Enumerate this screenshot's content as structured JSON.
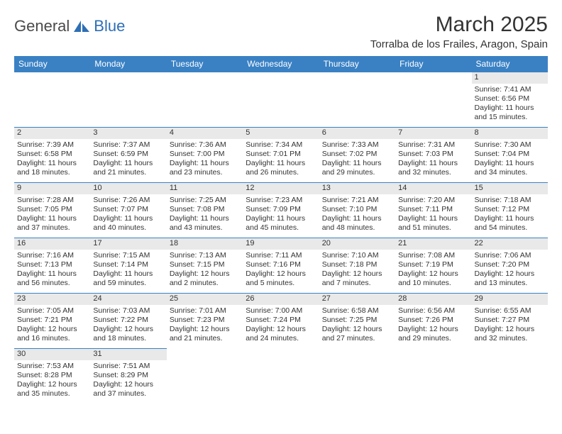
{
  "logo": {
    "part1": "General",
    "part2": "Blue"
  },
  "title": "March 2025",
  "location": "Torralba de los Frailes, Aragon, Spain",
  "colors": {
    "header_bg": "#3a81c4",
    "header_fg": "#ffffff",
    "daynum_bg": "#e9e9e9",
    "rule": "#3a81c4",
    "logo_accent": "#2e6fb5"
  },
  "weekdays": [
    "Sunday",
    "Monday",
    "Tuesday",
    "Wednesday",
    "Thursday",
    "Friday",
    "Saturday"
  ],
  "weeks": [
    [
      null,
      null,
      null,
      null,
      null,
      null,
      {
        "n": "1",
        "sunrise": "Sunrise: 7:41 AM",
        "sunset": "Sunset: 6:56 PM",
        "day1": "Daylight: 11 hours",
        "day2": "and 15 minutes."
      }
    ],
    [
      {
        "n": "2",
        "sunrise": "Sunrise: 7:39 AM",
        "sunset": "Sunset: 6:58 PM",
        "day1": "Daylight: 11 hours",
        "day2": "and 18 minutes."
      },
      {
        "n": "3",
        "sunrise": "Sunrise: 7:37 AM",
        "sunset": "Sunset: 6:59 PM",
        "day1": "Daylight: 11 hours",
        "day2": "and 21 minutes."
      },
      {
        "n": "4",
        "sunrise": "Sunrise: 7:36 AM",
        "sunset": "Sunset: 7:00 PM",
        "day1": "Daylight: 11 hours",
        "day2": "and 23 minutes."
      },
      {
        "n": "5",
        "sunrise": "Sunrise: 7:34 AM",
        "sunset": "Sunset: 7:01 PM",
        "day1": "Daylight: 11 hours",
        "day2": "and 26 minutes."
      },
      {
        "n": "6",
        "sunrise": "Sunrise: 7:33 AM",
        "sunset": "Sunset: 7:02 PM",
        "day1": "Daylight: 11 hours",
        "day2": "and 29 minutes."
      },
      {
        "n": "7",
        "sunrise": "Sunrise: 7:31 AM",
        "sunset": "Sunset: 7:03 PM",
        "day1": "Daylight: 11 hours",
        "day2": "and 32 minutes."
      },
      {
        "n": "8",
        "sunrise": "Sunrise: 7:30 AM",
        "sunset": "Sunset: 7:04 PM",
        "day1": "Daylight: 11 hours",
        "day2": "and 34 minutes."
      }
    ],
    [
      {
        "n": "9",
        "sunrise": "Sunrise: 7:28 AM",
        "sunset": "Sunset: 7:05 PM",
        "day1": "Daylight: 11 hours",
        "day2": "and 37 minutes."
      },
      {
        "n": "10",
        "sunrise": "Sunrise: 7:26 AM",
        "sunset": "Sunset: 7:07 PM",
        "day1": "Daylight: 11 hours",
        "day2": "and 40 minutes."
      },
      {
        "n": "11",
        "sunrise": "Sunrise: 7:25 AM",
        "sunset": "Sunset: 7:08 PM",
        "day1": "Daylight: 11 hours",
        "day2": "and 43 minutes."
      },
      {
        "n": "12",
        "sunrise": "Sunrise: 7:23 AM",
        "sunset": "Sunset: 7:09 PM",
        "day1": "Daylight: 11 hours",
        "day2": "and 45 minutes."
      },
      {
        "n": "13",
        "sunrise": "Sunrise: 7:21 AM",
        "sunset": "Sunset: 7:10 PM",
        "day1": "Daylight: 11 hours",
        "day2": "and 48 minutes."
      },
      {
        "n": "14",
        "sunrise": "Sunrise: 7:20 AM",
        "sunset": "Sunset: 7:11 PM",
        "day1": "Daylight: 11 hours",
        "day2": "and 51 minutes."
      },
      {
        "n": "15",
        "sunrise": "Sunrise: 7:18 AM",
        "sunset": "Sunset: 7:12 PM",
        "day1": "Daylight: 11 hours",
        "day2": "and 54 minutes."
      }
    ],
    [
      {
        "n": "16",
        "sunrise": "Sunrise: 7:16 AM",
        "sunset": "Sunset: 7:13 PM",
        "day1": "Daylight: 11 hours",
        "day2": "and 56 minutes."
      },
      {
        "n": "17",
        "sunrise": "Sunrise: 7:15 AM",
        "sunset": "Sunset: 7:14 PM",
        "day1": "Daylight: 11 hours",
        "day2": "and 59 minutes."
      },
      {
        "n": "18",
        "sunrise": "Sunrise: 7:13 AM",
        "sunset": "Sunset: 7:15 PM",
        "day1": "Daylight: 12 hours",
        "day2": "and 2 minutes."
      },
      {
        "n": "19",
        "sunrise": "Sunrise: 7:11 AM",
        "sunset": "Sunset: 7:16 PM",
        "day1": "Daylight: 12 hours",
        "day2": "and 5 minutes."
      },
      {
        "n": "20",
        "sunrise": "Sunrise: 7:10 AM",
        "sunset": "Sunset: 7:18 PM",
        "day1": "Daylight: 12 hours",
        "day2": "and 7 minutes."
      },
      {
        "n": "21",
        "sunrise": "Sunrise: 7:08 AM",
        "sunset": "Sunset: 7:19 PM",
        "day1": "Daylight: 12 hours",
        "day2": "and 10 minutes."
      },
      {
        "n": "22",
        "sunrise": "Sunrise: 7:06 AM",
        "sunset": "Sunset: 7:20 PM",
        "day1": "Daylight: 12 hours",
        "day2": "and 13 minutes."
      }
    ],
    [
      {
        "n": "23",
        "sunrise": "Sunrise: 7:05 AM",
        "sunset": "Sunset: 7:21 PM",
        "day1": "Daylight: 12 hours",
        "day2": "and 16 minutes."
      },
      {
        "n": "24",
        "sunrise": "Sunrise: 7:03 AM",
        "sunset": "Sunset: 7:22 PM",
        "day1": "Daylight: 12 hours",
        "day2": "and 18 minutes."
      },
      {
        "n": "25",
        "sunrise": "Sunrise: 7:01 AM",
        "sunset": "Sunset: 7:23 PM",
        "day1": "Daylight: 12 hours",
        "day2": "and 21 minutes."
      },
      {
        "n": "26",
        "sunrise": "Sunrise: 7:00 AM",
        "sunset": "Sunset: 7:24 PM",
        "day1": "Daylight: 12 hours",
        "day2": "and 24 minutes."
      },
      {
        "n": "27",
        "sunrise": "Sunrise: 6:58 AM",
        "sunset": "Sunset: 7:25 PM",
        "day1": "Daylight: 12 hours",
        "day2": "and 27 minutes."
      },
      {
        "n": "28",
        "sunrise": "Sunrise: 6:56 AM",
        "sunset": "Sunset: 7:26 PM",
        "day1": "Daylight: 12 hours",
        "day2": "and 29 minutes."
      },
      {
        "n": "29",
        "sunrise": "Sunrise: 6:55 AM",
        "sunset": "Sunset: 7:27 PM",
        "day1": "Daylight: 12 hours",
        "day2": "and 32 minutes."
      }
    ],
    [
      {
        "n": "30",
        "sunrise": "Sunrise: 7:53 AM",
        "sunset": "Sunset: 8:28 PM",
        "day1": "Daylight: 12 hours",
        "day2": "and 35 minutes."
      },
      {
        "n": "31",
        "sunrise": "Sunrise: 7:51 AM",
        "sunset": "Sunset: 8:29 PM",
        "day1": "Daylight: 12 hours",
        "day2": "and 37 minutes."
      },
      null,
      null,
      null,
      null,
      null
    ]
  ]
}
